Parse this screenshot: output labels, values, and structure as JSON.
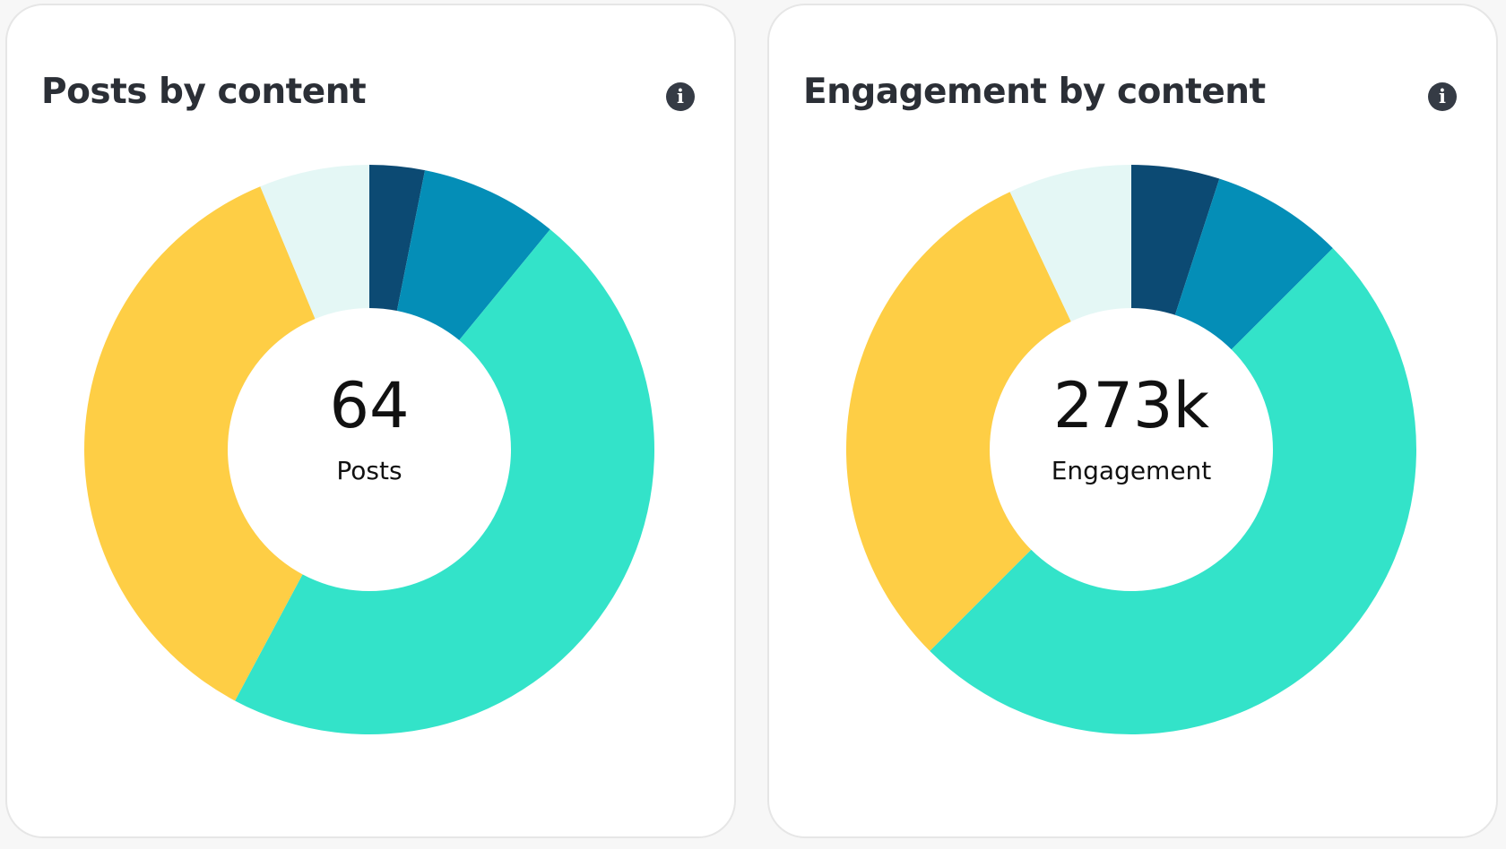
{
  "colors": {
    "navy": "#0c4a73",
    "blue": "#048eb7",
    "teal": "#33e3c9",
    "yellow": "#fece45",
    "pale": "#e4f7f5",
    "hole": "#ffffff"
  },
  "cards": [
    {
      "title": "Posts by content",
      "info_icon": "info-icon",
      "center_value": "64",
      "center_label": "Posts"
    },
    {
      "title": "Engagement by content",
      "info_icon": "info-icon",
      "center_value": "273k",
      "center_label": "Engagement"
    }
  ],
  "chart_data": [
    {
      "type": "pie",
      "variant": "donut",
      "title": "Posts by content",
      "center_text": "64",
      "center_label": "Posts",
      "total": 64,
      "slices": [
        {
          "value": 2,
          "color": "navy"
        },
        {
          "value": 5,
          "color": "blue"
        },
        {
          "value": 30,
          "color": "teal"
        },
        {
          "value": 23,
          "color": "yellow"
        },
        {
          "value": 4,
          "color": "pale"
        }
      ]
    },
    {
      "type": "pie",
      "variant": "donut",
      "title": "Engagement by content",
      "center_text": "273k",
      "center_label": "Engagement",
      "total_percent": 100,
      "slices": [
        {
          "value": 5,
          "color": "navy"
        },
        {
          "value": 7.5,
          "color": "blue"
        },
        {
          "value": 50,
          "color": "teal"
        },
        {
          "value": 30.5,
          "color": "yellow"
        },
        {
          "value": 7,
          "color": "pale"
        }
      ]
    }
  ]
}
